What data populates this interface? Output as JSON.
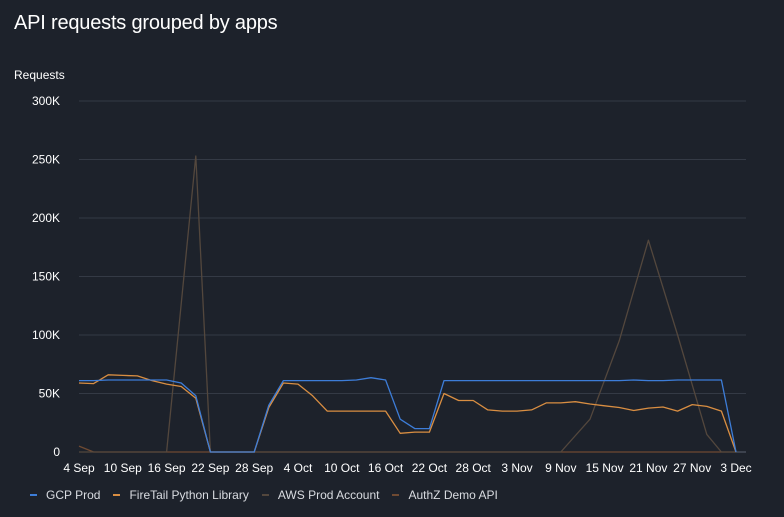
{
  "title": "API requests grouped by apps",
  "chart_data": {
    "type": "line",
    "title": "API requests grouped by apps",
    "ylabel": "Requests",
    "xlabel": "",
    "ylim": [
      0,
      300000
    ],
    "y_ticks": [
      0,
      50000,
      100000,
      150000,
      200000,
      250000,
      300000
    ],
    "y_tick_labels": [
      "0",
      "50K",
      "100K",
      "150K",
      "200K",
      "250K",
      "300K"
    ],
    "x_start": "2023-09-04",
    "x_end": "2023-12-03",
    "x_ticks": [
      "2023-09-04",
      "2023-09-10",
      "2023-09-16",
      "2023-09-22",
      "2023-09-28",
      "2023-10-04",
      "2023-10-10",
      "2023-10-16",
      "2023-10-22",
      "2023-10-28",
      "2023-11-03",
      "2023-11-09",
      "2023-11-15",
      "2023-11-21",
      "2023-11-27",
      "2023-12-03"
    ],
    "x_tick_labels": [
      "4 Sep",
      "10 Sep",
      "16 Sep",
      "22 Sep",
      "28 Sep",
      "4 Oct",
      "10 Oct",
      "16 Oct",
      "22 Oct",
      "28 Oct",
      "3 Nov",
      "9 Nov",
      "15 Nov",
      "21 Nov",
      "27 Nov",
      "3 Dec"
    ],
    "grid": true,
    "legend_position": "bottom-left",
    "series": [
      {
        "name": "GCP Prod",
        "color": "#3d7dd8",
        "points": [
          [
            "2023-09-04",
            61000
          ],
          [
            "2023-09-06",
            61000
          ],
          [
            "2023-09-08",
            61500
          ],
          [
            "2023-09-10",
            61500
          ],
          [
            "2023-09-12",
            61500
          ],
          [
            "2023-09-14",
            61500
          ],
          [
            "2023-09-16",
            61500
          ],
          [
            "2023-09-18",
            59000
          ],
          [
            "2023-09-20",
            48000
          ],
          [
            "2023-09-22",
            0
          ],
          [
            "2023-09-28",
            0
          ],
          [
            "2023-09-30",
            40000
          ],
          [
            "2023-10-02",
            61000
          ],
          [
            "2023-10-04",
            61000
          ],
          [
            "2023-10-06",
            61000
          ],
          [
            "2023-10-08",
            61000
          ],
          [
            "2023-10-10",
            61000
          ],
          [
            "2023-10-12",
            61500
          ],
          [
            "2023-10-14",
            63500
          ],
          [
            "2023-10-16",
            61500
          ],
          [
            "2023-10-18",
            28000
          ],
          [
            "2023-10-20",
            20000
          ],
          [
            "2023-10-22",
            20000
          ],
          [
            "2023-10-24",
            61000
          ],
          [
            "2023-10-26",
            61000
          ],
          [
            "2023-10-28",
            61000
          ],
          [
            "2023-10-30",
            61000
          ],
          [
            "2023-11-01",
            61000
          ],
          [
            "2023-11-03",
            61000
          ],
          [
            "2023-11-05",
            61000
          ],
          [
            "2023-11-07",
            61000
          ],
          [
            "2023-11-09",
            61000
          ],
          [
            "2023-11-11",
            61000
          ],
          [
            "2023-11-13",
            61000
          ],
          [
            "2023-11-15",
            61000
          ],
          [
            "2023-11-17",
            61000
          ],
          [
            "2023-11-19",
            61500
          ],
          [
            "2023-11-21",
            61000
          ],
          [
            "2023-11-23",
            61000
          ],
          [
            "2023-11-25",
            61500
          ],
          [
            "2023-11-27",
            61500
          ],
          [
            "2023-11-29",
            61500
          ],
          [
            "2023-12-01",
            61500
          ],
          [
            "2023-12-03",
            0
          ]
        ]
      },
      {
        "name": "FireTail Python Library",
        "color": "#d98e42",
        "points": [
          [
            "2023-09-04",
            59000
          ],
          [
            "2023-09-06",
            58500
          ],
          [
            "2023-09-08",
            66000
          ],
          [
            "2023-09-10",
            65500
          ],
          [
            "2023-09-12",
            65000
          ],
          [
            "2023-09-14",
            61000
          ],
          [
            "2023-09-16",
            58000
          ],
          [
            "2023-09-18",
            56000
          ],
          [
            "2023-09-20",
            46000
          ],
          [
            "2023-09-22",
            0
          ],
          [
            "2023-09-28",
            0
          ],
          [
            "2023-09-30",
            38000
          ],
          [
            "2023-10-02",
            59000
          ],
          [
            "2023-10-04",
            58000
          ],
          [
            "2023-10-06",
            48000
          ],
          [
            "2023-10-08",
            35000
          ],
          [
            "2023-10-10",
            35000
          ],
          [
            "2023-10-12",
            35000
          ],
          [
            "2023-10-14",
            35000
          ],
          [
            "2023-10-16",
            35000
          ],
          [
            "2023-10-18",
            16000
          ],
          [
            "2023-10-20",
            17000
          ],
          [
            "2023-10-22",
            17000
          ],
          [
            "2023-10-24",
            50000
          ],
          [
            "2023-10-26",
            44000
          ],
          [
            "2023-10-28",
            44000
          ],
          [
            "2023-10-30",
            36000
          ],
          [
            "2023-11-01",
            35000
          ],
          [
            "2023-11-03",
            35000
          ],
          [
            "2023-11-05",
            36000
          ],
          [
            "2023-11-07",
            42000
          ],
          [
            "2023-11-09",
            42000
          ],
          [
            "2023-11-11",
            43000
          ],
          [
            "2023-11-13",
            41000
          ],
          [
            "2023-11-15",
            39500
          ],
          [
            "2023-11-17",
            38000
          ],
          [
            "2023-11-19",
            35500
          ],
          [
            "2023-11-21",
            37500
          ],
          [
            "2023-11-23",
            38500
          ],
          [
            "2023-11-25",
            35000
          ],
          [
            "2023-11-27",
            40500
          ],
          [
            "2023-11-29",
            39000
          ],
          [
            "2023-12-01",
            35000
          ],
          [
            "2023-12-03",
            0
          ]
        ]
      },
      {
        "name": "AWS Prod Account",
        "color": "#53473d",
        "points": [
          [
            "2023-09-04",
            0
          ],
          [
            "2023-09-16",
            0
          ],
          [
            "2023-09-20",
            253000
          ],
          [
            "2023-09-22",
            0
          ],
          [
            "2023-11-09",
            0
          ],
          [
            "2023-11-13",
            28000
          ],
          [
            "2023-11-17",
            95000
          ],
          [
            "2023-11-21",
            181000
          ],
          [
            "2023-11-25",
            100000
          ],
          [
            "2023-11-29",
            15000
          ],
          [
            "2023-12-01",
            0
          ],
          [
            "2023-12-03",
            0
          ]
        ]
      },
      {
        "name": "AuthZ Demo API",
        "color": "#6f4a32",
        "points": [
          [
            "2023-09-04",
            5000
          ],
          [
            "2023-09-06",
            0
          ],
          [
            "2023-12-03",
            0
          ]
        ]
      }
    ]
  }
}
